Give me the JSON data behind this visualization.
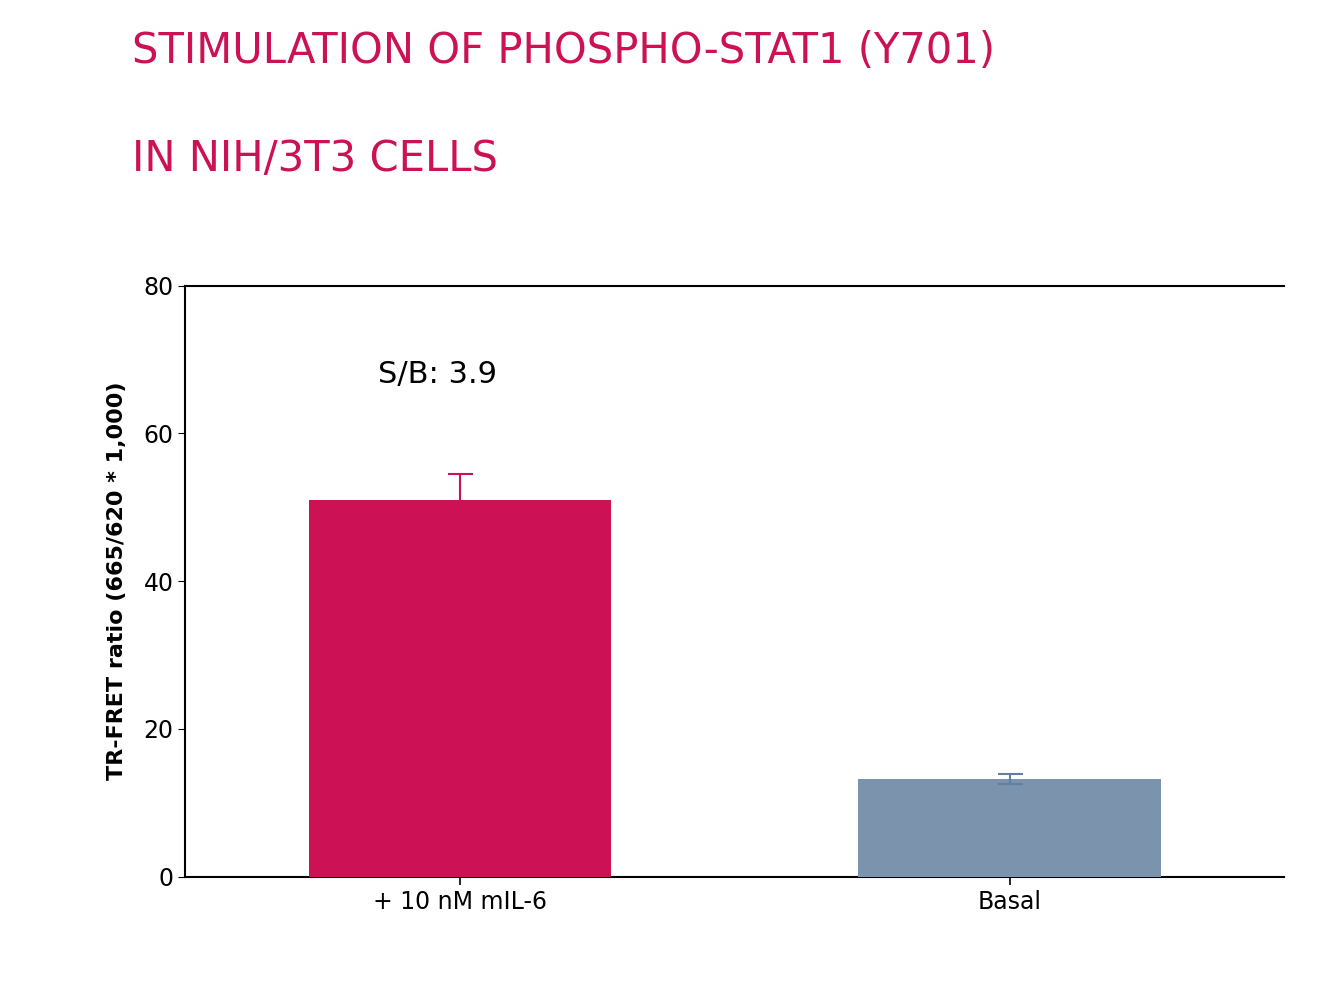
{
  "title_line1": "STIMULATION OF PHOSPHO-STAT1 (Y701)",
  "title_line2": "IN NIH/3T3 CELLS",
  "title_color": "#CC1154",
  "title_fontsize": 30,
  "title_fontweight": "normal",
  "categories": [
    "+ 10 nM mIL-6",
    "Basal"
  ],
  "values": [
    51.0,
    13.2
  ],
  "errors": [
    3.5,
    0.7
  ],
  "bar_colors": [
    "#CC1154",
    "#7B93AD"
  ],
  "error_color_1": "#CC1154",
  "error_color_2": "#6080A0",
  "ylabel": "TR-FRET ratio (665/620 * 1,000)",
  "ylabel_fontsize": 16,
  "ylabel_fontweight": "bold",
  "xtick_fontsize": 17,
  "ytick_fontsize": 17,
  "ylim": [
    0,
    80
  ],
  "yticks": [
    0,
    20,
    40,
    60,
    80
  ],
  "annotation_text": "S/B: 3.9",
  "annotation_fontsize": 22,
  "bar_width": 0.55,
  "background_color": "#FFFFFF",
  "spine_color": "#000000",
  "tick_color": "#000000"
}
